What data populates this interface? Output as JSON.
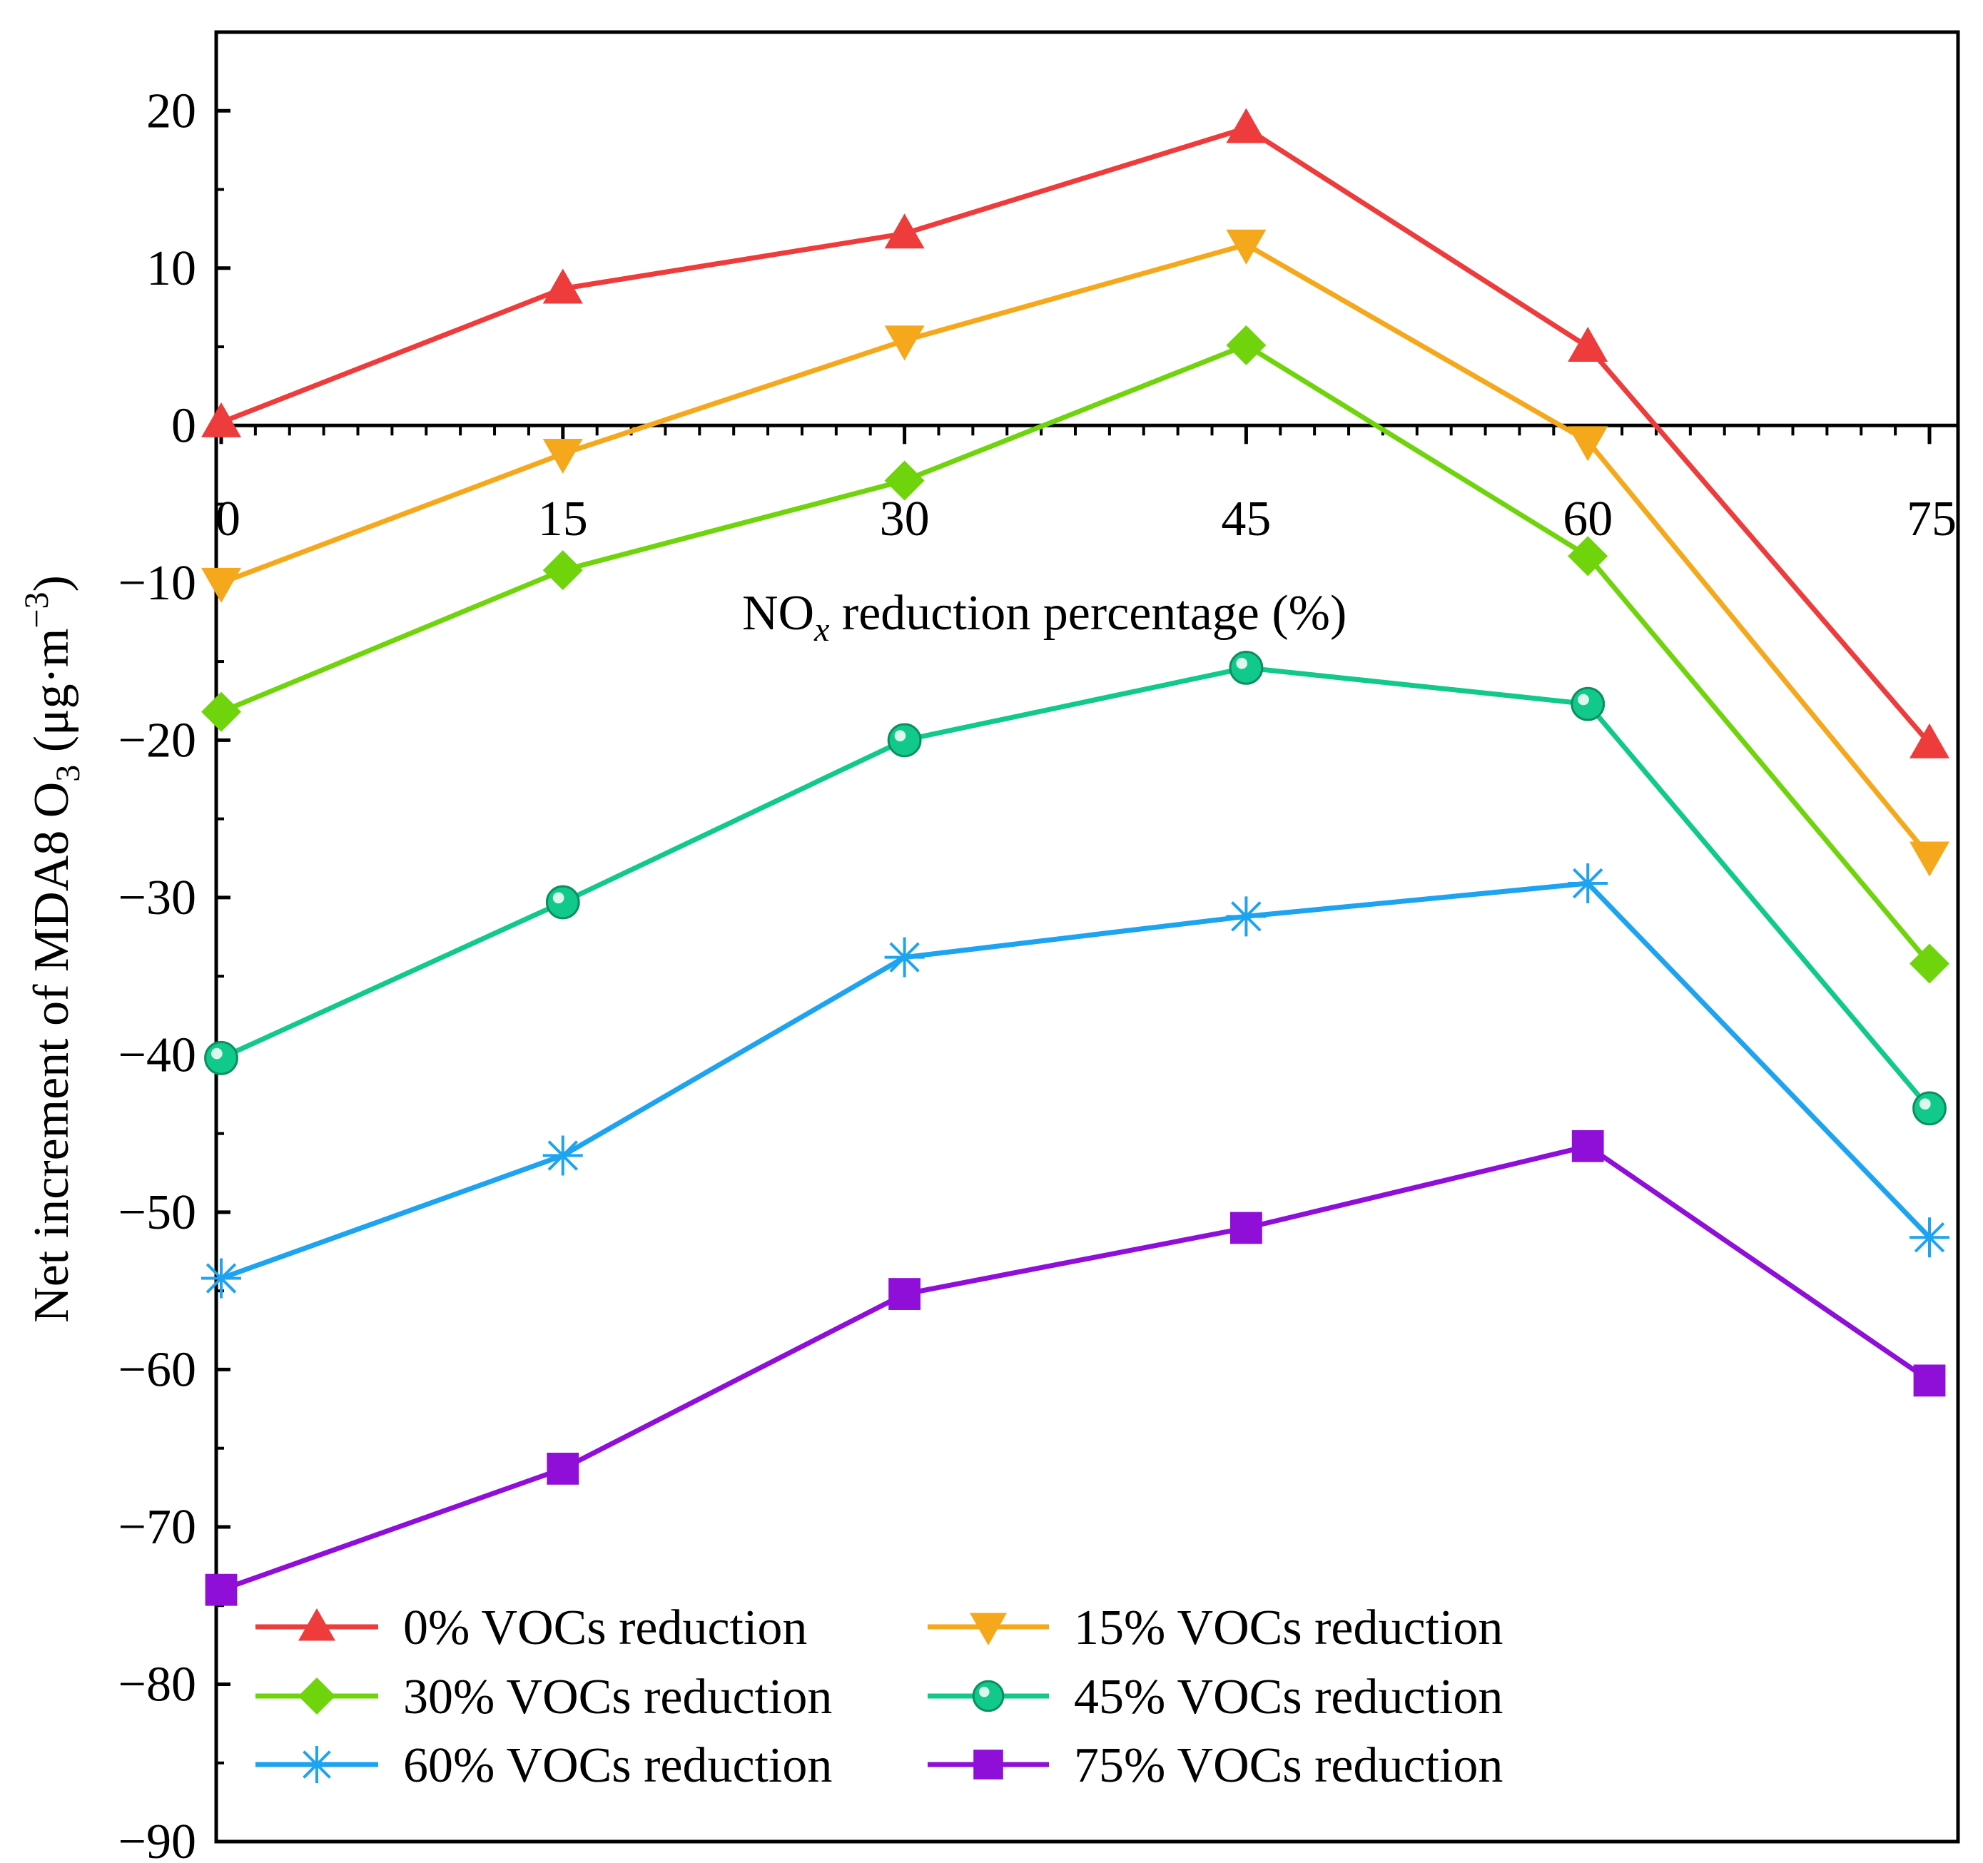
{
  "chart_data": {
    "type": "line",
    "title": "",
    "xlabel": {
      "main": "NO",
      "subscript": "x",
      "rest": " reduction percentage (%)"
    },
    "ylabel": {
      "prefix": "Net increment of MDA8 O",
      "subscript": "3",
      "mid": " (μg·m",
      "superscript": "−3",
      "suffix": ")"
    },
    "x": [
      0,
      15,
      30,
      45,
      60,
      75
    ],
    "x_tick_labels": [
      "0",
      "15",
      "30",
      "45",
      "60",
      "75"
    ],
    "xlim": [
      0,
      75
    ],
    "ylim": [
      -90,
      25
    ],
    "y_ticks": [
      20,
      10,
      0,
      -10,
      -20,
      -30,
      -40,
      -50,
      -60,
      -70,
      -80,
      -90
    ],
    "y_tick_labels": [
      "20",
      "10",
      "0",
      "−10",
      "−20",
      "−30",
      "−40",
      "−50",
      "−60",
      "−70",
      "−80",
      "−90"
    ],
    "grid": false,
    "legend_position": "bottom-left",
    "series": [
      {
        "name": "0% VOCs reduction",
        "color": "#ee3b3b",
        "marker": "triangle-up",
        "values": [
          0.2,
          8.7,
          12.2,
          18.9,
          5.0,
          -20.2
        ]
      },
      {
        "name": "15% VOCs reduction",
        "color": "#f5a81c",
        "marker": "triangle-down",
        "values": [
          -10.0,
          -1.8,
          5.4,
          11.5,
          -1.0,
          -27.4
        ]
      },
      {
        "name": "30% VOCs reduction",
        "color": "#6fd40c",
        "marker": "diamond",
        "values": [
          -18.2,
          -9.2,
          -3.5,
          5.1,
          -8.3,
          -34.2
        ]
      },
      {
        "name": "45% VOCs reduction",
        "color": "#10c98a",
        "marker": "circle",
        "values": [
          -40.2,
          -30.3,
          -20.0,
          -15.4,
          -17.7,
          -43.4
        ]
      },
      {
        "name": "60% VOCs reduction",
        "color": "#1ea3f0",
        "marker": "asterisk",
        "values": [
          -54.2,
          -46.4,
          -33.8,
          -31.2,
          -29.1,
          -51.6
        ]
      },
      {
        "name": "75% VOCs reduction",
        "color": "#8f0fd9",
        "marker": "square",
        "values": [
          -74.0,
          -66.3,
          -55.2,
          -51.0,
          -45.8,
          -60.7
        ]
      }
    ]
  }
}
